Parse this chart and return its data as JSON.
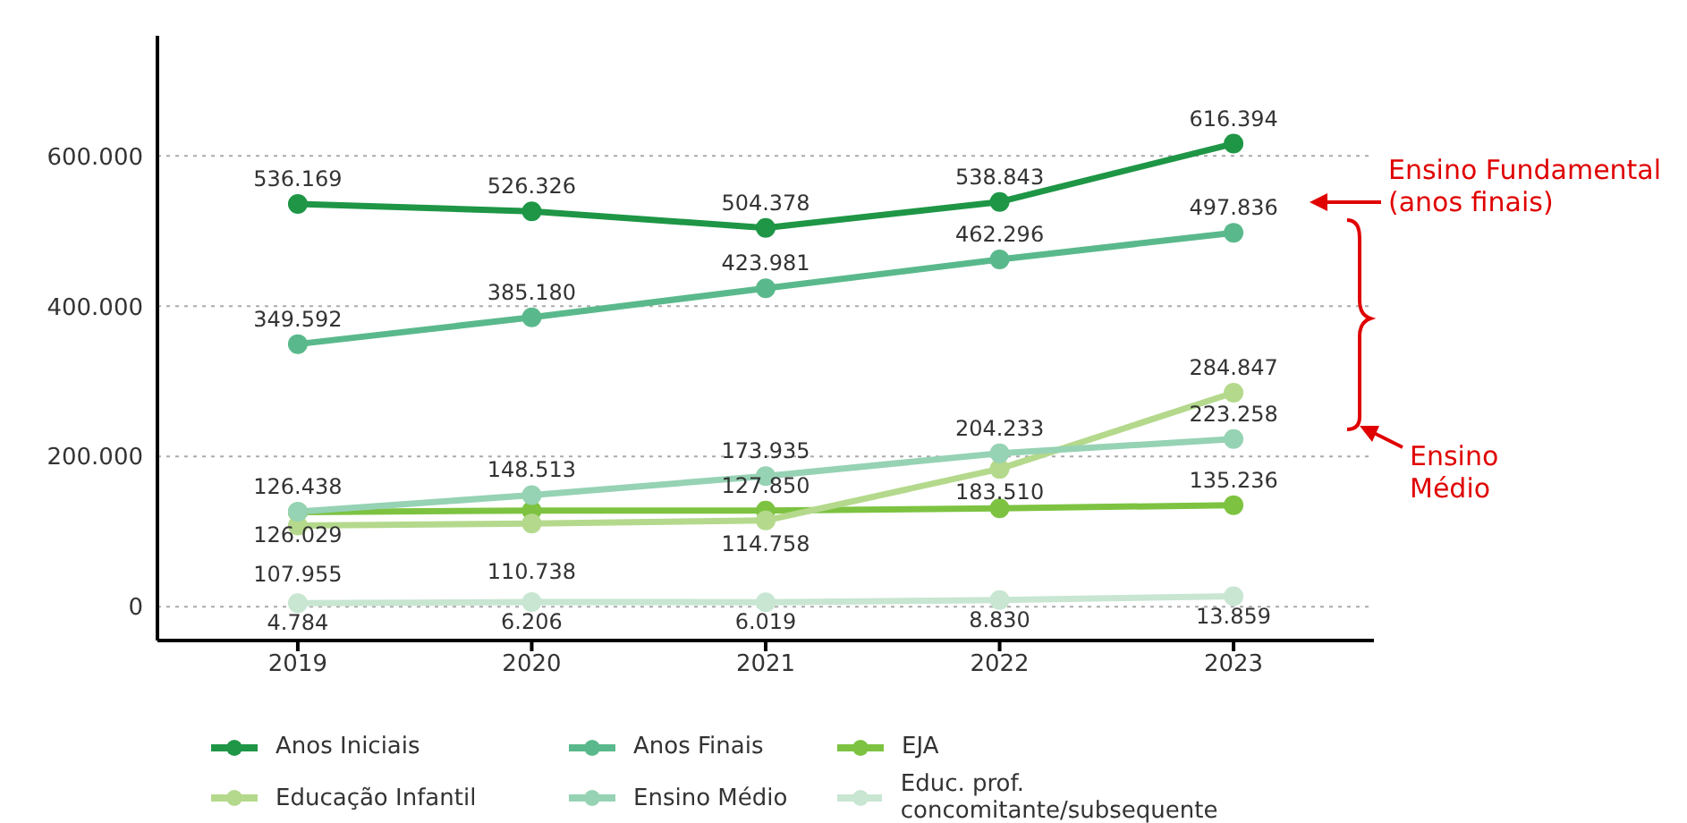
{
  "chart_data": {
    "type": "line",
    "categories": [
      "2019",
      "2020",
      "2021",
      "2022",
      "2023"
    ],
    "series": [
      {
        "name": "Anos Iniciais",
        "color": "#1e9646",
        "values": [
          536169,
          526326,
          504378,
          538843,
          616394
        ],
        "value_labels": [
          "536.169",
          "526.326",
          "504.378",
          "538.843",
          "616.394"
        ]
      },
      {
        "name": "Anos Finais",
        "color": "#5ab98c",
        "values": [
          349592,
          385180,
          423981,
          462296,
          497836
        ],
        "value_labels": [
          "349.592",
          "385.180",
          "423.981",
          "462.296",
          "497.836"
        ]
      },
      {
        "name": "EJA",
        "color": "#7dc341",
        "values": [
          126029,
          128000,
          127850,
          131000,
          135236
        ],
        "value_labels": [
          "126.029",
          null,
          "127.850",
          null,
          "135.236"
        ]
      },
      {
        "name": "Educação Infantil",
        "color": "#b4d98c",
        "values": [
          107955,
          110738,
          114758,
          183510,
          284847
        ],
        "value_labels": [
          "107.955",
          "110.738",
          "114.758",
          "183.510",
          "284.847"
        ]
      },
      {
        "name": "Ensino Médio",
        "color": "#96d2b4",
        "values": [
          126438,
          148513,
          173935,
          204233,
          223258
        ],
        "value_labels": [
          "126.438",
          "148.513",
          "173.935",
          "204.233",
          "223.258"
        ]
      },
      {
        "name": "Educ. prof. concomitante/subsequente",
        "color": "#c8e6d2",
        "values": [
          4784,
          6206,
          6019,
          8830,
          13859
        ],
        "value_labels": [
          "4.784",
          "6.206",
          "6.019",
          "8.830",
          "13.859"
        ]
      }
    ],
    "ylim": [
      -45000,
      760000
    ],
    "yticks": [
      0,
      {
        "value": 200000,
        "label": "200.000"
      },
      {
        "value": 400000,
        "label": "400.000"
      },
      {
        "value": 600000,
        "label": "600.000"
      }
    ],
    "grid": "y",
    "legend": "bottom",
    "marker": "circle",
    "line_style": "solid",
    "annotations": [
      "Ensino Fundamental (anos finais)",
      "Ensino Médio"
    ]
  }
}
